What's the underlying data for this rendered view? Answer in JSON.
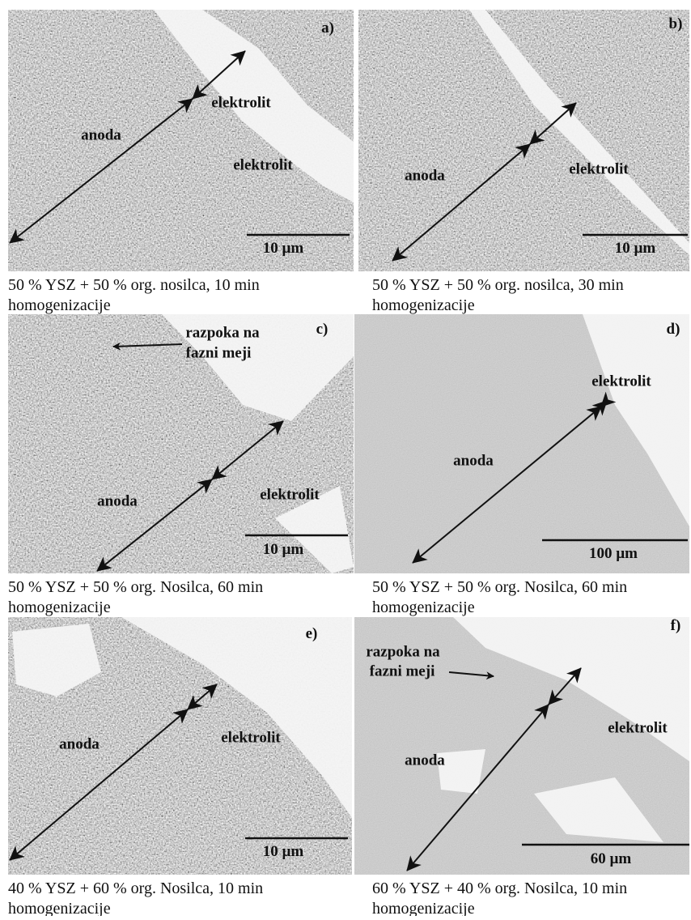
{
  "panels": [
    {
      "letter": "a)",
      "labels": [
        "elektrolit",
        "anoda",
        "elektrolit"
      ],
      "scale": "10 µm",
      "caption": [
        "50 % YSZ + 50 % org. nosilca, 10 min",
        "homogenizacije"
      ]
    },
    {
      "letter": "b)",
      "labels": [
        "anoda",
        "elektrolit"
      ],
      "scale": "10 µm",
      "caption": [
        "50 % YSZ + 50 % org. nosilca, 30 min",
        "homogenizacije"
      ]
    },
    {
      "letter": "c)",
      "labels": [
        "razpoka na",
        "fazni meji",
        "anoda",
        "elektrolit"
      ],
      "scale": "10 µm",
      "caption": [
        "50 % YSZ + 50 % org. Nosilca, 60 min",
        "homogenizacije"
      ]
    },
    {
      "letter": "d)",
      "labels": [
        "elektrolit",
        "anoda"
      ],
      "scale": "100 µm",
      "caption": [
        "50 % YSZ + 50 % org. Nosilca, 60 min",
        "homogenizacije"
      ]
    },
    {
      "letter": "e)",
      "labels": [
        "anoda",
        "elektrolit"
      ],
      "scale": "10 µm",
      "caption": [
        "40 % YSZ + 60 % org. Nosilca, 10 min",
        "homogenizacije"
      ]
    },
    {
      "letter": "f)",
      "labels": [
        "razpoka na",
        "fazni meji",
        "elektrolit",
        "anoda"
      ],
      "scale": "60 µm",
      "caption": [
        "60 % YSZ + 40 % org. Nosilca, 10 min",
        "homogenizacije"
      ]
    }
  ]
}
